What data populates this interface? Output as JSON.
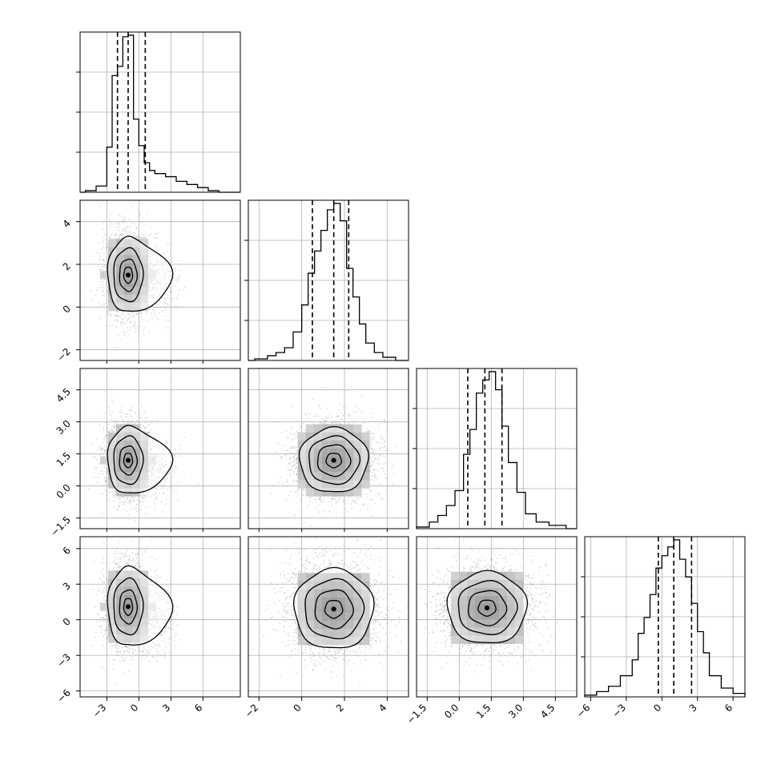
{
  "chart_data": {
    "type": "corner",
    "n_params": 4,
    "histograms": [
      {
        "param_index": 0,
        "xlim": [
          -5.5,
          9.5
        ],
        "quantile_lines": [
          -2.0,
          -1.0,
          0.6
        ],
        "bins": [
          {
            "x0": -5.0,
            "x1": -4.0,
            "h": 0.01
          },
          {
            "x0": -4.0,
            "x1": -3.0,
            "h": 0.04
          },
          {
            "x0": -3.0,
            "x1": -2.5,
            "h": 0.29
          },
          {
            "x0": -2.5,
            "x1": -2.0,
            "h": 0.75
          },
          {
            "x0": -2.0,
            "x1": -1.5,
            "h": 0.81
          },
          {
            "x0": -1.5,
            "x1": -1.0,
            "h": 1.0
          },
          {
            "x0": -1.0,
            "x1": -0.5,
            "h": 1.01
          },
          {
            "x0": -0.5,
            "x1": 0.0,
            "h": 0.47
          },
          {
            "x0": 0.0,
            "x1": 0.5,
            "h": 0.3
          },
          {
            "x0": 0.5,
            "x1": 1.0,
            "h": 0.19
          },
          {
            "x0": 1.0,
            "x1": 1.5,
            "h": 0.14
          },
          {
            "x0": 1.5,
            "x1": 2.5,
            "h": 0.12
          },
          {
            "x0": 2.5,
            "x1": 3.5,
            "h": 0.1
          },
          {
            "x0": 3.5,
            "x1": 4.5,
            "h": 0.07
          },
          {
            "x0": 4.5,
            "x1": 5.5,
            "h": 0.05
          },
          {
            "x0": 5.5,
            "x1": 6.5,
            "h": 0.03
          },
          {
            "x0": 6.5,
            "x1": 7.5,
            "h": 0.01
          }
        ]
      },
      {
        "param_index": 1,
        "xlim": [
          -2.5,
          5.0
        ],
        "quantile_lines": [
          0.5,
          1.5,
          2.2
        ],
        "bins": [
          {
            "x0": -2.2,
            "x1": -1.6,
            "h": 0.01
          },
          {
            "x0": -1.6,
            "x1": -1.2,
            "h": 0.03
          },
          {
            "x0": -1.2,
            "x1": -0.8,
            "h": 0.05
          },
          {
            "x0": -0.8,
            "x1": -0.4,
            "h": 0.08
          },
          {
            "x0": -0.4,
            "x1": 0.0,
            "h": 0.18
          },
          {
            "x0": 0.0,
            "x1": 0.3,
            "h": 0.35
          },
          {
            "x0": 0.3,
            "x1": 0.6,
            "h": 0.55
          },
          {
            "x0": 0.6,
            "x1": 0.9,
            "h": 0.69
          },
          {
            "x0": 0.9,
            "x1": 1.2,
            "h": 0.82
          },
          {
            "x0": 1.2,
            "x1": 1.5,
            "h": 0.95
          },
          {
            "x0": 1.5,
            "x1": 1.8,
            "h": 0.99
          },
          {
            "x0": 1.8,
            "x1": 2.1,
            "h": 0.88
          },
          {
            "x0": 2.1,
            "x1": 2.4,
            "h": 0.58
          },
          {
            "x0": 2.4,
            "x1": 2.7,
            "h": 0.4
          },
          {
            "x0": 2.7,
            "x1": 3.0,
            "h": 0.23
          },
          {
            "x0": 3.0,
            "x1": 3.4,
            "h": 0.11
          },
          {
            "x0": 3.4,
            "x1": 3.8,
            "h": 0.05
          },
          {
            "x0": 3.8,
            "x1": 4.4,
            "h": 0.02
          }
        ]
      },
      {
        "param_index": 2,
        "xlim": [
          -2.0,
          5.5
        ],
        "quantile_lines": [
          0.4,
          1.2,
          2.0
        ],
        "bins": [
          {
            "x0": -2.0,
            "x1": -1.4,
            "h": 0.01
          },
          {
            "x0": -1.4,
            "x1": -1.0,
            "h": 0.04
          },
          {
            "x0": -1.0,
            "x1": -0.6,
            "h": 0.08
          },
          {
            "x0": -0.6,
            "x1": -0.2,
            "h": 0.14
          },
          {
            "x0": -0.2,
            "x1": 0.2,
            "h": 0.23
          },
          {
            "x0": 0.2,
            "x1": 0.5,
            "h": 0.45
          },
          {
            "x0": 0.5,
            "x1": 0.8,
            "h": 0.6
          },
          {
            "x0": 0.8,
            "x1": 1.1,
            "h": 0.82
          },
          {
            "x0": 1.1,
            "x1": 1.4,
            "h": 0.9
          },
          {
            "x0": 1.4,
            "x1": 1.7,
            "h": 0.95
          },
          {
            "x0": 1.7,
            "x1": 2.0,
            "h": 0.84
          },
          {
            "x0": 2.0,
            "x1": 2.3,
            "h": 0.62
          },
          {
            "x0": 2.3,
            "x1": 2.7,
            "h": 0.4
          },
          {
            "x0": 2.7,
            "x1": 3.1,
            "h": 0.22
          },
          {
            "x0": 3.1,
            "x1": 3.6,
            "h": 0.09
          },
          {
            "x0": 3.6,
            "x1": 4.2,
            "h": 0.04
          },
          {
            "x0": 4.2,
            "x1": 5.0,
            "h": 0.02
          }
        ]
      },
      {
        "param_index": 3,
        "xlim": [
          -6.5,
          7.0
        ],
        "quantile_lines": [
          -0.3,
          1.0,
          2.5
        ],
        "bins": [
          {
            "x0": -6.5,
            "x1": -5.5,
            "h": 0.01
          },
          {
            "x0": -5.5,
            "x1": -4.5,
            "h": 0.03
          },
          {
            "x0": -4.5,
            "x1": -3.5,
            "h": 0.06
          },
          {
            "x0": -3.5,
            "x1": -2.5,
            "h": 0.12
          },
          {
            "x0": -2.5,
            "x1": -2.0,
            "h": 0.21
          },
          {
            "x0": -2.0,
            "x1": -1.5,
            "h": 0.36
          },
          {
            "x0": -1.5,
            "x1": -1.0,
            "h": 0.45
          },
          {
            "x0": -1.0,
            "x1": -0.5,
            "h": 0.58
          },
          {
            "x0": -0.5,
            "x1": 0.0,
            "h": 0.73
          },
          {
            "x0": 0.0,
            "x1": 0.5,
            "h": 0.8
          },
          {
            "x0": 0.5,
            "x1": 1.0,
            "h": 0.85
          },
          {
            "x0": 1.0,
            "x1": 1.5,
            "h": 0.89
          },
          {
            "x0": 1.5,
            "x1": 2.0,
            "h": 0.78
          },
          {
            "x0": 2.0,
            "x1": 2.5,
            "h": 0.68
          },
          {
            "x0": 2.5,
            "x1": 3.0,
            "h": 0.53
          },
          {
            "x0": 3.0,
            "x1": 3.5,
            "h": 0.37
          },
          {
            "x0": 3.5,
            "x1": 4.0,
            "h": 0.25
          },
          {
            "x0": 4.0,
            "x1": 5.0,
            "h": 0.12
          },
          {
            "x0": 5.0,
            "x1": 6.0,
            "h": 0.05
          },
          {
            "x0": 6.0,
            "x1": 7.0,
            "h": 0.02
          }
        ]
      }
    ],
    "pairs": [
      {
        "row": 1,
        "col": 0,
        "mode": [
          -1.0,
          1.5
        ],
        "spread": [
          1.1,
          1.0
        ],
        "tail": {
          "dx": 4.0,
          "dy": -0.5,
          "strength": 0.4
        },
        "contour_scales": [
          0.3,
          0.6,
          1.0,
          1.4
        ]
      },
      {
        "row": 2,
        "col": 0,
        "mode": [
          -1.0,
          1.2
        ],
        "spread": [
          1.1,
          0.9
        ],
        "tail": {
          "dx": 4.0,
          "dy": -0.5,
          "strength": 0.4
        },
        "contour_scales": [
          0.3,
          0.6,
          1.0,
          1.4
        ]
      },
      {
        "row": 3,
        "col": 0,
        "mode": [
          -1.0,
          1.1
        ],
        "spread": [
          1.1,
          1.9
        ],
        "tail": {
          "dx": 4.0,
          "dy": -1.5,
          "strength": 0.4
        },
        "contour_scales": [
          0.3,
          0.6,
          1.0,
          1.4
        ]
      },
      {
        "row": 2,
        "col": 1,
        "mode": [
          1.5,
          1.2
        ],
        "spread": [
          0.95,
          0.9
        ],
        "contour_scales": [
          0.3,
          0.65,
          1.0,
          1.35
        ]
      },
      {
        "row": 3,
        "col": 1,
        "mode": [
          1.5,
          0.9
        ],
        "spread": [
          1.1,
          2.0
        ],
        "contour_scales": [
          0.3,
          0.65,
          1.0,
          1.35
        ]
      },
      {
        "row": 3,
        "col": 2,
        "mode": [
          1.3,
          1.0
        ],
        "spread": [
          1.1,
          1.8
        ],
        "contour_scales": [
          0.3,
          0.65,
          1.0,
          1.35
        ]
      }
    ],
    "axes": [
      {
        "param_index": 0,
        "lim": [
          -5.5,
          9.5
        ],
        "ticks": [
          -3,
          0,
          3,
          6
        ],
        "tick_labels": [
          "−3",
          "0",
          "3",
          "6"
        ]
      },
      {
        "param_index": 1,
        "lim": [
          -2.5,
          5.0
        ],
        "ticks": [
          -2,
          0,
          2,
          4
        ],
        "tick_labels": [
          "−2",
          "0",
          "2",
          "4"
        ]
      },
      {
        "param_index": 2,
        "lim": [
          -2.0,
          5.5
        ],
        "ticks": [
          -1.5,
          0.0,
          1.5,
          3.0,
          4.5
        ],
        "tick_labels": [
          "−1.5",
          "0.0",
          "1.5",
          "3.0",
          "4.5"
        ]
      },
      {
        "param_index": 3,
        "lim": [
          -6.5,
          7.0
        ],
        "ticks": [
          -6,
          -3,
          0,
          3,
          6
        ],
        "tick_labels": [
          "−6",
          "−3",
          "0",
          "3",
          "6"
        ]
      }
    ],
    "hist_grid_ticks": [
      0.25,
      0.5,
      0.75
    ],
    "grid": true,
    "colors": {
      "line": "#000000",
      "grid": "#b0b0b0",
      "scatter": "#9a9a9a"
    }
  }
}
